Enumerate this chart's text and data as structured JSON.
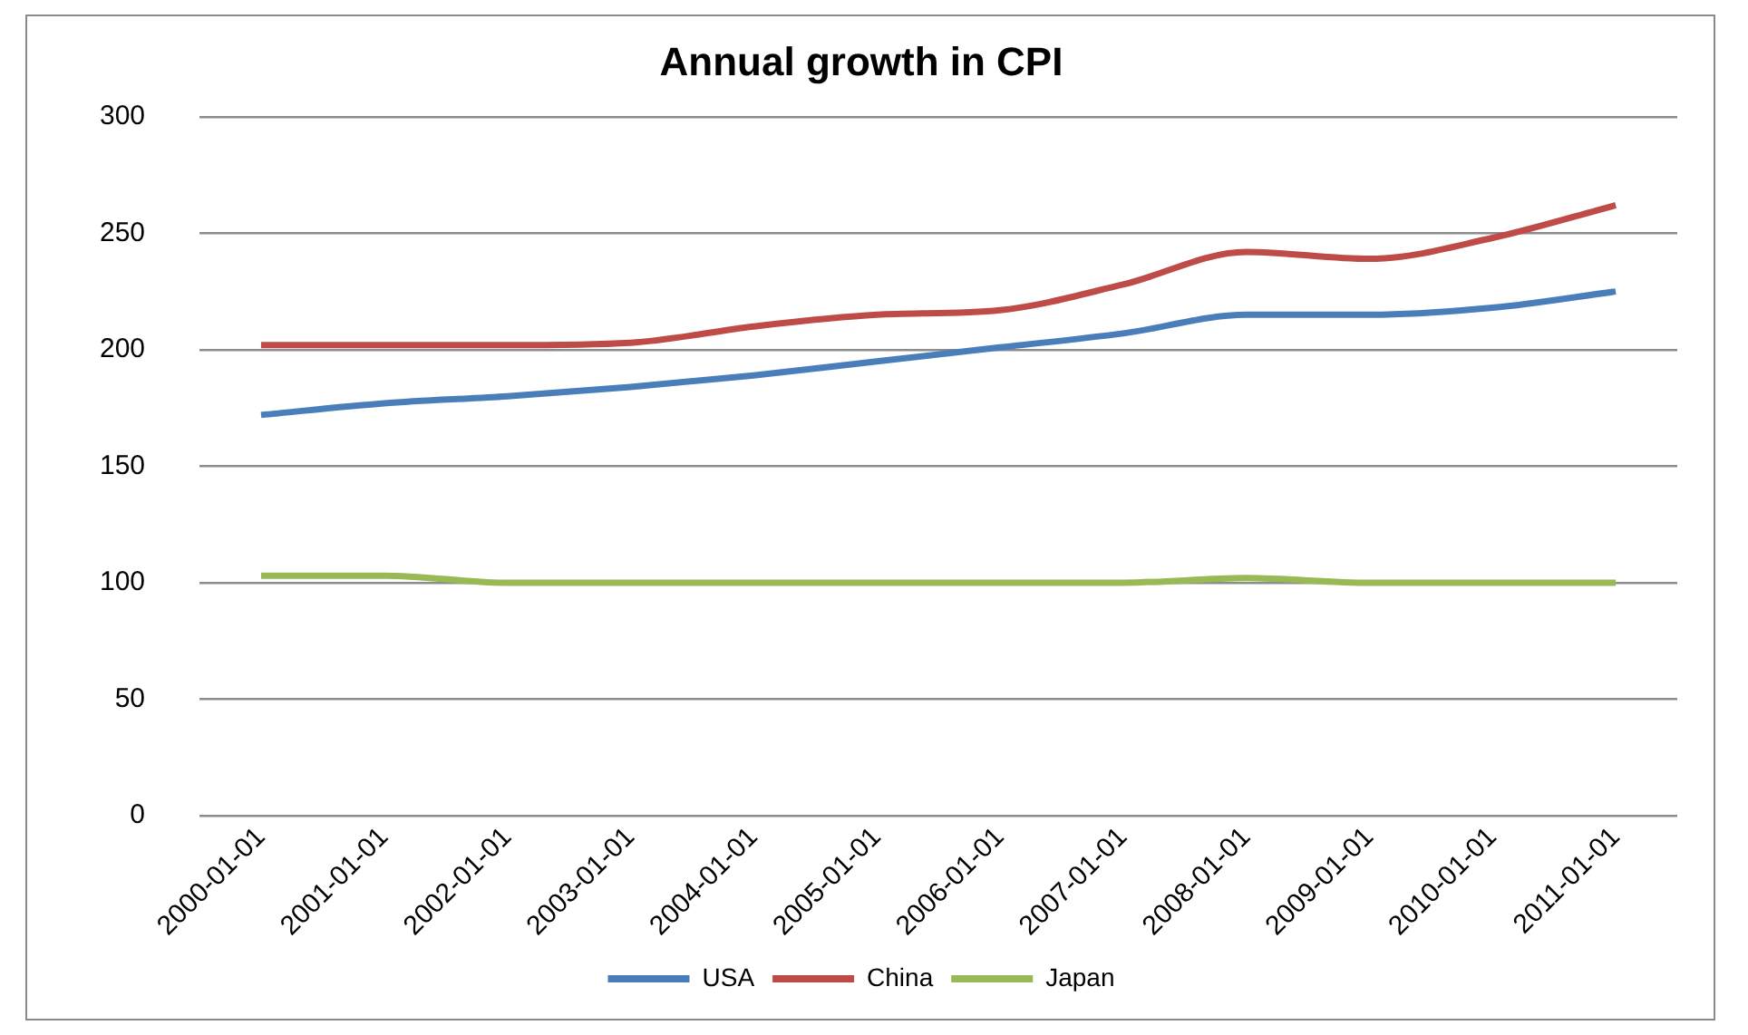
{
  "chart_data": {
    "type": "line",
    "title": "Annual growth in CPI",
    "categories": [
      "2000-01-01",
      "2001-01-01",
      "2002-01-01",
      "2003-01-01",
      "2004-01-01",
      "2005-01-01",
      "2006-01-01",
      "2007-01-01",
      "2008-01-01",
      "2009-01-01",
      "2010-01-01",
      "2011-01-01"
    ],
    "series": [
      {
        "name": "USA",
        "color": "#4a7ebb",
        "values": [
          172,
          177,
          180,
          184,
          189,
          195,
          201,
          207,
          215,
          215,
          218,
          225
        ]
      },
      {
        "name": "China",
        "color": "#be4b48",
        "values": [
          202,
          202,
          202,
          203,
          210,
          215,
          217,
          228,
          242,
          239,
          248,
          262
        ]
      },
      {
        "name": "Japan",
        "color": "#98b954",
        "values": [
          103,
          103,
          100,
          100,
          100,
          100,
          100,
          100,
          102,
          100,
          100,
          100
        ]
      }
    ],
    "ylim": [
      0,
      300
    ],
    "yticks": [
      0,
      50,
      100,
      150,
      200,
      250,
      300
    ],
    "grid": "y",
    "legend": "bottom",
    "marker": "none",
    "line_style": "solid"
  }
}
